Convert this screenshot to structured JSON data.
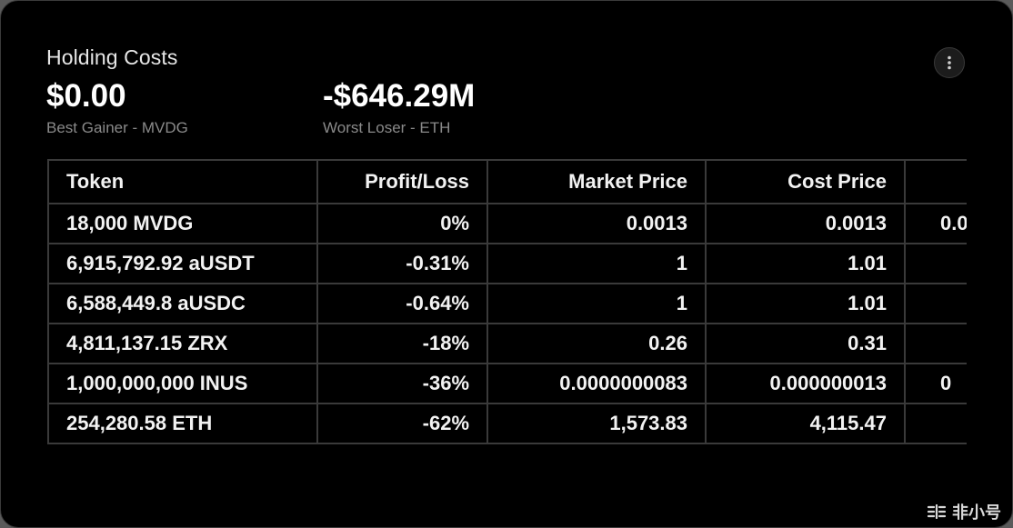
{
  "card": {
    "title": "Holding Costs",
    "best_gainer": {
      "value": "$0.00",
      "label": "Best Gainer - MVDG"
    },
    "worst_loser": {
      "value": "-$646.29M",
      "label": "Worst Loser - ETH"
    },
    "menu_icon": "more-vertical-icon"
  },
  "table": {
    "headers": [
      "Token",
      "Profit/Loss",
      "Market Price",
      "Cost Price",
      ""
    ],
    "rows": [
      {
        "token": "18,000 MVDG",
        "pl": "0%",
        "market": "0.0013",
        "cost": "0.0013",
        "extra": "0.0"
      },
      {
        "token": "6,915,792.92 aUSDT",
        "pl": "-0.31%",
        "market": "1",
        "cost": "1.01",
        "extra": ""
      },
      {
        "token": "6,588,449.8 aUSDC",
        "pl": "-0.64%",
        "market": "1",
        "cost": "1.01",
        "extra": ""
      },
      {
        "token": "4,811,137.15 ZRX",
        "pl": "-18%",
        "market": "0.26",
        "cost": "0.31",
        "extra": ""
      },
      {
        "token": "1,000,000,000 INUS",
        "pl": "-36%",
        "market": "0.0000000083",
        "cost": "0.000000013",
        "extra": "0"
      },
      {
        "token": "254,280.58 ETH",
        "pl": "-62%",
        "market": "1,573.83",
        "cost": "4,115.47",
        "extra": ""
      }
    ]
  },
  "watermark": {
    "text": "非小号",
    "icon": "feixiaohao-logo-icon"
  }
}
